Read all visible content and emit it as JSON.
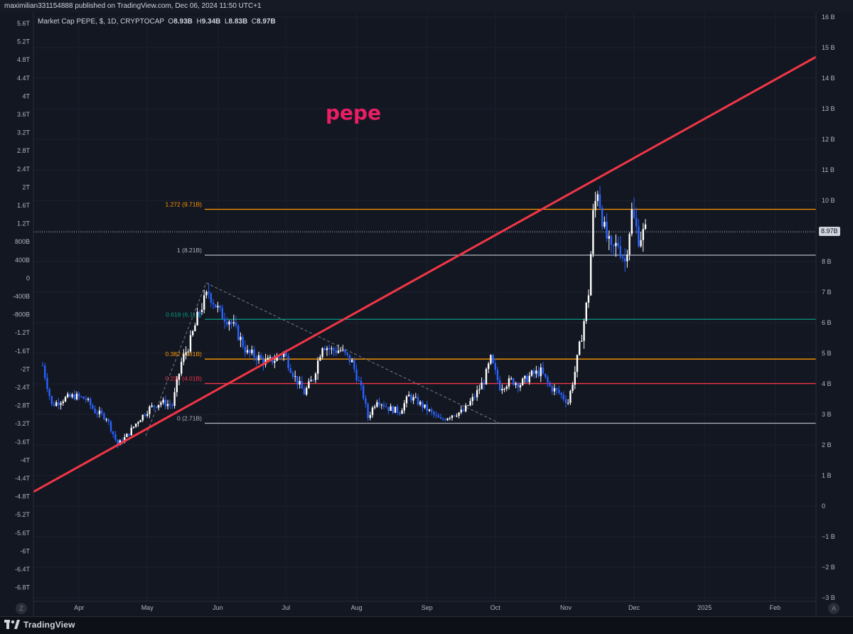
{
  "header": {
    "published": "maximilian331154888 published on TradingView.com, Dec 06, 2024 11:50 UTC+1"
  },
  "legend": {
    "symbol": "Market Cap PEPE, $, 1D, CRYPTOCAP",
    "o_label": "O",
    "o_value": "8.93B",
    "h_label": "H",
    "h_value": "9.34B",
    "l_label": "L",
    "l_value": "8.83B",
    "c_label": "C",
    "c_value": "8.97B"
  },
  "annotation_text": "pepe",
  "last_price_label": "8.97B",
  "footer": {
    "brand": "TradingView",
    "left_button": "Z",
    "right_button": "A"
  },
  "colors": {
    "background": "#131722",
    "up_candle": "#ffffff",
    "down_candle": "#2962ff",
    "trendline": "#f23645",
    "fib_1272": "#ff9800",
    "fib_1": "#b2b5be",
    "fib_0618": "#089981",
    "fib_0382": "#ff9800",
    "fib_0236": "#f23645",
    "fib_0": "#b2b5be",
    "annotation": "#e91e63"
  },
  "chart_data": {
    "type": "candlestick",
    "title": "Market Cap PEPE, $, 1D, CRYPTOCAP",
    "x_tick_labels": [
      "Apr",
      "May",
      "Jun",
      "Jul",
      "Aug",
      "Sep",
      "Oct",
      "Nov",
      "Dec",
      "2025",
      "Feb"
    ],
    "right_axis_labels": [
      "16 B",
      "15 B",
      "14 B",
      "13 B",
      "12 B",
      "11 B",
      "10 B",
      "9 B",
      "8 B",
      "7 B",
      "6 B",
      "5 B",
      "4 B",
      "3 B",
      "2 B",
      "1 B",
      "0",
      "−1 B",
      "−2 B",
      "−3 B"
    ],
    "right_axis_values": [
      16,
      15,
      14,
      13,
      12,
      11,
      10,
      9,
      8,
      7,
      6,
      5,
      4,
      3,
      2,
      1,
      0,
      -1,
      -2,
      -3
    ],
    "left_axis_labels": [
      "5.6T",
      "5.2T",
      "4.8T",
      "4.4T",
      "4T",
      "3.6T",
      "3.2T",
      "2.8T",
      "2.4T",
      "2T",
      "1.6T",
      "1.2T",
      "800B",
      "400B",
      "0",
      "-400B",
      "-800B",
      "-1.2T",
      "-1.6T",
      "-2T",
      "-2.4T",
      "-2.8T",
      "-3.2T",
      "-3.6T",
      "-4T",
      "-4.4T",
      "-4.8T",
      "-5.2T",
      "-5.6T",
      "-6T",
      "-6.4T",
      "-6.8T"
    ],
    "y_unit": "B",
    "y_range": [
      -3,
      16
    ],
    "last_price": 8.97,
    "fib_levels": [
      {
        "label": "1.272 (9.71B)",
        "value": 9.71,
        "color": "#ff9800"
      },
      {
        "label": "1 (8.21B)",
        "value": 8.21,
        "color": "#b2b5be"
      },
      {
        "label": "0.618 (6.11B)",
        "value": 6.11,
        "color": "#089981"
      },
      {
        "label": "0.382 (4.81B)",
        "value": 4.81,
        "color": "#ff9800"
      },
      {
        "label": "0.236 (4.01B)",
        "value": 4.01,
        "color": "#f23645"
      },
      {
        "label": "0 (2.71B)",
        "value": 2.71,
        "color": "#b2b5be"
      }
    ],
    "price_series": [
      {
        "date": "2024-03-16",
        "close": 4.6
      },
      {
        "date": "2024-03-20",
        "close": 3.3
      },
      {
        "date": "2024-03-25",
        "close": 3.5
      },
      {
        "date": "2024-03-30",
        "close": 3.6
      },
      {
        "date": "2024-04-04",
        "close": 3.5
      },
      {
        "date": "2024-04-08",
        "close": 3.1
      },
      {
        "date": "2024-04-13",
        "close": 2.9
      },
      {
        "date": "2024-04-18",
        "close": 2.0
      },
      {
        "date": "2024-04-22",
        "close": 2.3
      },
      {
        "date": "2024-04-27",
        "close": 2.8
      },
      {
        "date": "2024-05-02",
        "close": 3.2
      },
      {
        "date": "2024-05-07",
        "close": 3.4
      },
      {
        "date": "2024-05-12",
        "close": 3.3
      },
      {
        "date": "2024-05-16",
        "close": 4.7
      },
      {
        "date": "2024-05-20",
        "close": 5.4
      },
      {
        "date": "2024-05-24",
        "close": 6.4
      },
      {
        "date": "2024-05-28",
        "close": 7.0
      },
      {
        "date": "2024-06-02",
        "close": 6.3
      },
      {
        "date": "2024-06-06",
        "close": 6.1
      },
      {
        "date": "2024-06-10",
        "close": 5.6
      },
      {
        "date": "2024-06-14",
        "close": 5.0
      },
      {
        "date": "2024-06-18",
        "close": 4.9
      },
      {
        "date": "2024-06-22",
        "close": 4.7
      },
      {
        "date": "2024-06-26",
        "close": 4.8
      },
      {
        "date": "2024-06-30",
        "close": 5.0
      },
      {
        "date": "2024-07-05",
        "close": 4.2
      },
      {
        "date": "2024-07-09",
        "close": 3.7
      },
      {
        "date": "2024-07-13",
        "close": 4.2
      },
      {
        "date": "2024-07-17",
        "close": 5.3
      },
      {
        "date": "2024-07-21",
        "close": 5.1
      },
      {
        "date": "2024-07-25",
        "close": 5.1
      },
      {
        "date": "2024-07-30",
        "close": 4.7
      },
      {
        "date": "2024-08-04",
        "close": 3.6
      },
      {
        "date": "2024-08-06",
        "close": 2.9
      },
      {
        "date": "2024-08-10",
        "close": 3.5
      },
      {
        "date": "2024-08-15",
        "close": 3.2
      },
      {
        "date": "2024-08-20",
        "close": 3.1
      },
      {
        "date": "2024-08-24",
        "close": 3.6
      },
      {
        "date": "2024-08-28",
        "close": 3.4
      },
      {
        "date": "2024-09-02",
        "close": 3.1
      },
      {
        "date": "2024-09-07",
        "close": 2.8
      },
      {
        "date": "2024-09-12",
        "close": 3.0
      },
      {
        "date": "2024-09-17",
        "close": 3.1
      },
      {
        "date": "2024-09-22",
        "close": 3.6
      },
      {
        "date": "2024-09-26",
        "close": 4.1
      },
      {
        "date": "2024-09-29",
        "close": 4.8
      },
      {
        "date": "2024-10-03",
        "close": 3.9
      },
      {
        "date": "2024-10-08",
        "close": 4.1
      },
      {
        "date": "2024-10-12",
        "close": 4.0
      },
      {
        "date": "2024-10-17",
        "close": 4.3
      },
      {
        "date": "2024-10-21",
        "close": 4.4
      },
      {
        "date": "2024-10-25",
        "close": 3.9
      },
      {
        "date": "2024-10-29",
        "close": 3.7
      },
      {
        "date": "2024-11-02",
        "close": 3.4
      },
      {
        "date": "2024-11-05",
        "close": 4.4
      },
      {
        "date": "2024-11-08",
        "close": 5.6
      },
      {
        "date": "2024-11-11",
        "close": 7.0
      },
      {
        "date": "2024-11-13",
        "close": 9.5
      },
      {
        "date": "2024-11-15",
        "close": 10.4
      },
      {
        "date": "2024-11-18",
        "close": 9.0
      },
      {
        "date": "2024-11-21",
        "close": 8.3
      },
      {
        "date": "2024-11-24",
        "close": 8.6
      },
      {
        "date": "2024-11-27",
        "close": 8.0
      },
      {
        "date": "2024-11-30",
        "close": 9.6
      },
      {
        "date": "2024-12-03",
        "close": 8.8
      },
      {
        "date": "2024-12-06",
        "close": 8.97
      }
    ]
  }
}
